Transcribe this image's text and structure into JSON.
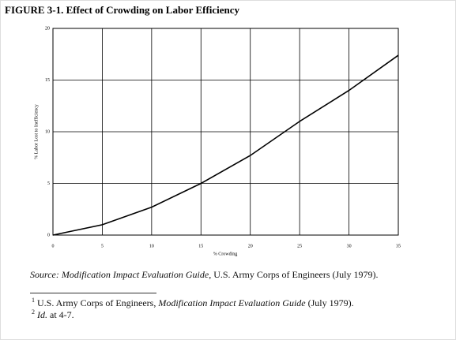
{
  "chart_data": {
    "type": "line",
    "title": "FIGURE 3-1.   Effect of Crowding on Labor Efficiency",
    "x_label": "% Crowding",
    "y_label": "% Labor Lost to Inefficiency",
    "x": [
      0,
      5,
      10,
      15,
      20,
      25,
      30,
      35
    ],
    "values": [
      0,
      1,
      2.7,
      5,
      7.7,
      11,
      14,
      17.4
    ],
    "color": "#000000",
    "xlim": [
      0,
      35
    ],
    "xticks": [
      0,
      5,
      10,
      15,
      20,
      25,
      30,
      35
    ],
    "ylim": [
      0,
      20
    ],
    "yticks": [
      0,
      5,
      10,
      15,
      20
    ],
    "grid": true
  },
  "source": {
    "label": "Source:",
    "title": "Modification Impact Evaluation Guide",
    "rest": ", U.S. Army Corps of Engineers (July 1979)."
  },
  "footnotes": [
    {
      "marker": "1",
      "text": "U.S. Army Corps of Engineers,",
      "title": "Modification Impact Evaluation Guide",
      "rest": "(July 1979)."
    },
    {
      "marker": "2",
      "title": "Id.",
      "rest": "at 4-7."
    }
  ]
}
